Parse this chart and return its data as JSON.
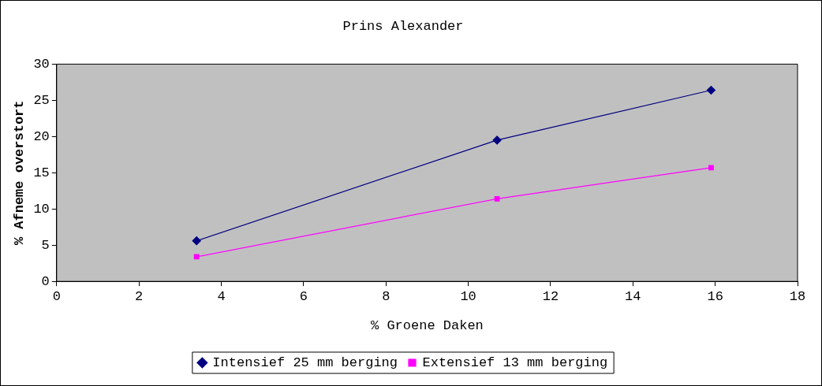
{
  "chart_data": {
    "type": "line",
    "title": "Prins Alexander",
    "xlabel": "% Groene Daken",
    "ylabel": "% Afneme overstort",
    "xlim": [
      0,
      18
    ],
    "xticks": [
      0,
      2,
      4,
      6,
      8,
      10,
      12,
      14,
      16,
      18
    ],
    "ylim": [
      0,
      30
    ],
    "yticks": [
      0,
      5,
      10,
      15,
      20,
      25,
      30
    ],
    "grid": false,
    "legend": "bottom",
    "line_style": "solid",
    "series": [
      {
        "name": "Intensief 25 mm berging",
        "color": "#000080",
        "marker": "diamond",
        "x": [
          3.4,
          10.7,
          15.9
        ],
        "values": [
          5.6,
          19.5,
          26.4
        ]
      },
      {
        "name": "Extensief 13 mm berging",
        "color": "#ff00ff",
        "marker": "square",
        "x": [
          3.4,
          10.7,
          15.9
        ],
        "values": [
          3.4,
          11.4,
          15.7
        ]
      }
    ]
  }
}
